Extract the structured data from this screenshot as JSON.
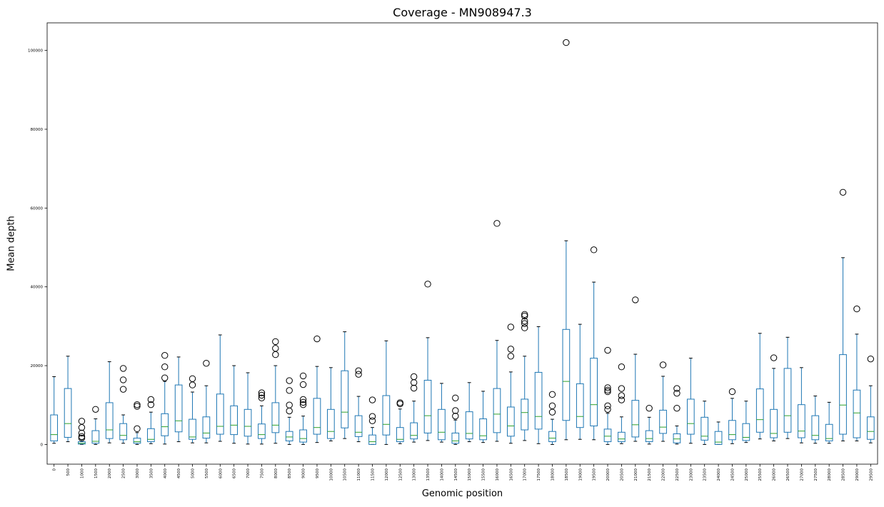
{
  "chart_data": {
    "type": "boxplot",
    "title": "Coverage - MN908947.3",
    "xlabel": "Genomic position",
    "ylabel": "Mean depth",
    "ylim": [
      -5000,
      107000
    ],
    "yticks": [
      0,
      20000,
      40000,
      60000,
      80000,
      100000
    ],
    "grid": false,
    "colors": {
      "box": "#1f77b4",
      "median": "#2ca02c",
      "whisker_cap": "#000000",
      "outlier": "#000000"
    },
    "boxes": [
      {
        "x": "0",
        "whislo": 300,
        "q1": 900,
        "med": 2500,
        "q3": 7500,
        "whishi": 17200,
        "fliers": []
      },
      {
        "x": "500",
        "whislo": 700,
        "q1": 1800,
        "med": 5300,
        "q3": 14200,
        "whishi": 22400,
        "fliers": []
      },
      {
        "x": "1000",
        "whislo": 0,
        "q1": 100,
        "med": 300,
        "q3": 700,
        "whishi": 1200,
        "fliers": [
          1600,
          2000,
          2900,
          4300,
          5900
        ]
      },
      {
        "x": "1500",
        "whislo": 0,
        "q1": 300,
        "med": 800,
        "q3": 3500,
        "whishi": 6500,
        "fliers": [
          8900
        ]
      },
      {
        "x": "2000",
        "whislo": 400,
        "q1": 1500,
        "med": 3700,
        "q3": 10600,
        "whishi": 21000,
        "fliers": []
      },
      {
        "x": "2500",
        "whislo": 300,
        "q1": 1200,
        "med": 2300,
        "q3": 5300,
        "whishi": 7500,
        "fliers": [
          14000,
          16400,
          19300
        ]
      },
      {
        "x": "3000",
        "whislo": 0,
        "q1": 300,
        "med": 700,
        "q3": 1600,
        "whishi": 3000,
        "fliers": [
          4000,
          9700,
          10100
        ]
      },
      {
        "x": "3500",
        "whislo": 200,
        "q1": 700,
        "med": 1300,
        "q3": 4000,
        "whishi": 8200,
        "fliers": [
          10100,
          11400
        ]
      },
      {
        "x": "4000",
        "whislo": 100,
        "q1": 2200,
        "med": 4500,
        "q3": 7800,
        "whishi": 16000,
        "fliers": [
          16900,
          19700,
          22600
        ]
      },
      {
        "x": "4500",
        "whislo": 700,
        "q1": 3200,
        "med": 6000,
        "q3": 15100,
        "whishi": 22200,
        "fliers": []
      },
      {
        "x": "5000",
        "whislo": 400,
        "q1": 1300,
        "med": 1900,
        "q3": 6400,
        "whishi": 13300,
        "fliers": [
          15100,
          16700
        ]
      },
      {
        "x": "5500",
        "whislo": 400,
        "q1": 1600,
        "med": 2900,
        "q3": 7000,
        "whishi": 14900,
        "fliers": [
          20600
        ]
      },
      {
        "x": "6000",
        "whislo": 800,
        "q1": 2600,
        "med": 4600,
        "q3": 12800,
        "whishi": 27800,
        "fliers": []
      },
      {
        "x": "6500",
        "whislo": 300,
        "q1": 2500,
        "med": 4900,
        "q3": 9800,
        "whishi": 20000,
        "fliers": []
      },
      {
        "x": "7000",
        "whislo": 100,
        "q1": 2100,
        "med": 4600,
        "q3": 8900,
        "whishi": 18200,
        "fliers": []
      },
      {
        "x": "7500",
        "whislo": 100,
        "q1": 1500,
        "med": 2500,
        "q3": 5200,
        "whishi": 9800,
        "fliers": [
          11800,
          12500,
          13100
        ]
      },
      {
        "x": "8000",
        "whislo": 300,
        "q1": 3000,
        "med": 4900,
        "q3": 10600,
        "whishi": 20000,
        "fliers": [
          22800,
          24400,
          26100
        ]
      },
      {
        "x": "8500",
        "whislo": 0,
        "q1": 900,
        "med": 1900,
        "q3": 3300,
        "whishi": 6900,
        "fliers": [
          8500,
          10000,
          13700,
          16200
        ]
      },
      {
        "x": "9000",
        "whislo": 0,
        "q1": 600,
        "med": 1500,
        "q3": 3700,
        "whishi": 7200,
        "fliers": [
          10100,
          10700,
          11400,
          15200,
          17400
        ]
      },
      {
        "x": "9500",
        "whislo": 500,
        "q1": 2600,
        "med": 4300,
        "q3": 11700,
        "whishi": 19800,
        "fliers": [
          26800
        ]
      },
      {
        "x": "10000",
        "whislo": 900,
        "q1": 1500,
        "med": 3300,
        "q3": 8900,
        "whishi": 19500,
        "fliers": []
      },
      {
        "x": "10500",
        "whislo": 1500,
        "q1": 4200,
        "med": 8200,
        "q3": 18700,
        "whishi": 28600,
        "fliers": []
      },
      {
        "x": "11000",
        "whislo": 700,
        "q1": 2000,
        "med": 3100,
        "q3": 7300,
        "whishi": 12200,
        "fliers": [
          17800,
          18700
        ]
      },
      {
        "x": "11500",
        "whislo": 0,
        "q1": 0,
        "med": 700,
        "q3": 2400,
        "whishi": 4300,
        "fliers": [
          6000,
          7100,
          11300
        ]
      },
      {
        "x": "12000",
        "whislo": 0,
        "q1": 2400,
        "med": 5100,
        "q3": 12400,
        "whishi": 26300,
        "fliers": []
      },
      {
        "x": "12500",
        "whislo": 200,
        "q1": 700,
        "med": 1300,
        "q3": 4300,
        "whishi": 9000,
        "fliers": [
          10300,
          10600
        ]
      },
      {
        "x": "13000",
        "whislo": 600,
        "q1": 1400,
        "med": 2300,
        "q3": 5500,
        "whishi": 11000,
        "fliers": [
          14300,
          15700,
          17200
        ]
      },
      {
        "x": "13500",
        "whislo": 1000,
        "q1": 2900,
        "med": 7300,
        "q3": 16300,
        "whishi": 27100,
        "fliers": [
          40700
        ]
      },
      {
        "x": "14000",
        "whislo": 600,
        "q1": 1200,
        "med": 3100,
        "q3": 8900,
        "whishi": 15500,
        "fliers": []
      },
      {
        "x": "14500",
        "whislo": 0,
        "q1": 300,
        "med": 900,
        "q3": 2900,
        "whishi": 6200,
        "fliers": [
          7200,
          8600,
          11800
        ]
      },
      {
        "x": "15000",
        "whislo": 700,
        "q1": 1400,
        "med": 2800,
        "q3": 8300,
        "whishi": 15700,
        "fliers": []
      },
      {
        "x": "15500",
        "whislo": 500,
        "q1": 1200,
        "med": 2200,
        "q3": 6500,
        "whishi": 13500,
        "fliers": []
      },
      {
        "x": "16000",
        "whislo": 800,
        "q1": 3000,
        "med": 7700,
        "q3": 14200,
        "whishi": 26400,
        "fliers": [
          56100
        ]
      },
      {
        "x": "16500",
        "whislo": 300,
        "q1": 2100,
        "med": 4700,
        "q3": 9500,
        "whishi": 18400,
        "fliers": [
          22400,
          24200,
          29800
        ]
      },
      {
        "x": "17000",
        "whislo": 1000,
        "q1": 3700,
        "med": 8100,
        "q3": 11500,
        "whishi": 22400,
        "fliers": [
          29600,
          30700,
          31300,
          32600,
          33000
        ]
      },
      {
        "x": "17500",
        "whislo": 200,
        "q1": 3900,
        "med": 7100,
        "q3": 18300,
        "whishi": 29900,
        "fliers": []
      },
      {
        "x": "18000",
        "whislo": 0,
        "q1": 700,
        "med": 1600,
        "q3": 3300,
        "whishi": 6400,
        "fliers": [
          8200,
          9800,
          12700
        ]
      },
      {
        "x": "18500",
        "whislo": 1200,
        "q1": 6100,
        "med": 16000,
        "q3": 29200,
        "whishi": 51700,
        "fliers": [
          102000
        ]
      },
      {
        "x": "19000",
        "whislo": 1300,
        "q1": 4300,
        "med": 7100,
        "q3": 15400,
        "whishi": 30500,
        "fliers": []
      },
      {
        "x": "19500",
        "whislo": 1200,
        "q1": 4700,
        "med": 10100,
        "q3": 21900,
        "whishi": 41200,
        "fliers": [
          49400
        ]
      },
      {
        "x": "20000",
        "whislo": 0,
        "q1": 700,
        "med": 2100,
        "q3": 3900,
        "whishi": 7900,
        "fliers": [
          8900,
          9800,
          13400,
          13800,
          14400,
          23900
        ]
      },
      {
        "x": "20500",
        "whislo": 200,
        "q1": 700,
        "med": 1400,
        "q3": 3100,
        "whishi": 7000,
        "fliers": [
          11300,
          12400,
          14200,
          19700
        ]
      },
      {
        "x": "21000",
        "whislo": 800,
        "q1": 1900,
        "med": 5000,
        "q3": 11200,
        "whishi": 22900,
        "fliers": [
          36700
        ]
      },
      {
        "x": "21500",
        "whislo": 100,
        "q1": 700,
        "med": 1500,
        "q3": 3500,
        "whishi": 6900,
        "fliers": [
          9200
        ]
      },
      {
        "x": "22000",
        "whislo": 800,
        "q1": 2800,
        "med": 4400,
        "q3": 8700,
        "whishi": 17300,
        "fliers": [
          20200
        ]
      },
      {
        "x": "22500",
        "whislo": 100,
        "q1": 400,
        "med": 1400,
        "q3": 2700,
        "whishi": 4700,
        "fliers": [
          9200,
          13000,
          14200
        ]
      },
      {
        "x": "23000",
        "whislo": 300,
        "q1": 2600,
        "med": 5300,
        "q3": 11500,
        "whishi": 21900,
        "fliers": []
      },
      {
        "x": "23500",
        "whislo": 0,
        "q1": 1100,
        "med": 2100,
        "q3": 6900,
        "whishi": 11000,
        "fliers": []
      },
      {
        "x": "24000",
        "whislo": 0,
        "q1": 0,
        "med": 600,
        "q3": 3300,
        "whishi": 5700,
        "fliers": []
      },
      {
        "x": "24500",
        "whislo": 200,
        "q1": 1200,
        "med": 2500,
        "q3": 6100,
        "whishi": 11700,
        "fliers": [
          13400
        ]
      },
      {
        "x": "25000",
        "whislo": 500,
        "q1": 1000,
        "med": 1800,
        "q3": 5300,
        "whishi": 11000,
        "fliers": []
      },
      {
        "x": "25500",
        "whislo": 1400,
        "q1": 3100,
        "med": 6300,
        "q3": 14100,
        "whishi": 28200,
        "fliers": []
      },
      {
        "x": "26000",
        "whislo": 900,
        "q1": 1700,
        "med": 2800,
        "q3": 8900,
        "whishi": 19300,
        "fliers": [
          22000
        ]
      },
      {
        "x": "26500",
        "whislo": 1500,
        "q1": 3100,
        "med": 7300,
        "q3": 19300,
        "whishi": 27200,
        "fliers": []
      },
      {
        "x": "27000",
        "whislo": 400,
        "q1": 1700,
        "med": 3400,
        "q3": 10100,
        "whishi": 19500,
        "fliers": []
      },
      {
        "x": "27500",
        "whislo": 300,
        "q1": 1200,
        "med": 2300,
        "q3": 7300,
        "whishi": 12300,
        "fliers": []
      },
      {
        "x": "28000",
        "whislo": 300,
        "q1": 900,
        "med": 1500,
        "q3": 5100,
        "whishi": 10700,
        "fliers": []
      },
      {
        "x": "28500",
        "whislo": 900,
        "q1": 2600,
        "med": 10000,
        "q3": 22800,
        "whishi": 47400,
        "fliers": [
          64000
        ]
      },
      {
        "x": "29000",
        "whislo": 900,
        "q1": 1700,
        "med": 8000,
        "q3": 13800,
        "whishi": 28000,
        "fliers": [
          34400
        ]
      },
      {
        "x": "29500",
        "whislo": 400,
        "q1": 1300,
        "med": 3300,
        "q3": 7000,
        "whishi": 14900,
        "fliers": [
          21700
        ]
      }
    ]
  }
}
